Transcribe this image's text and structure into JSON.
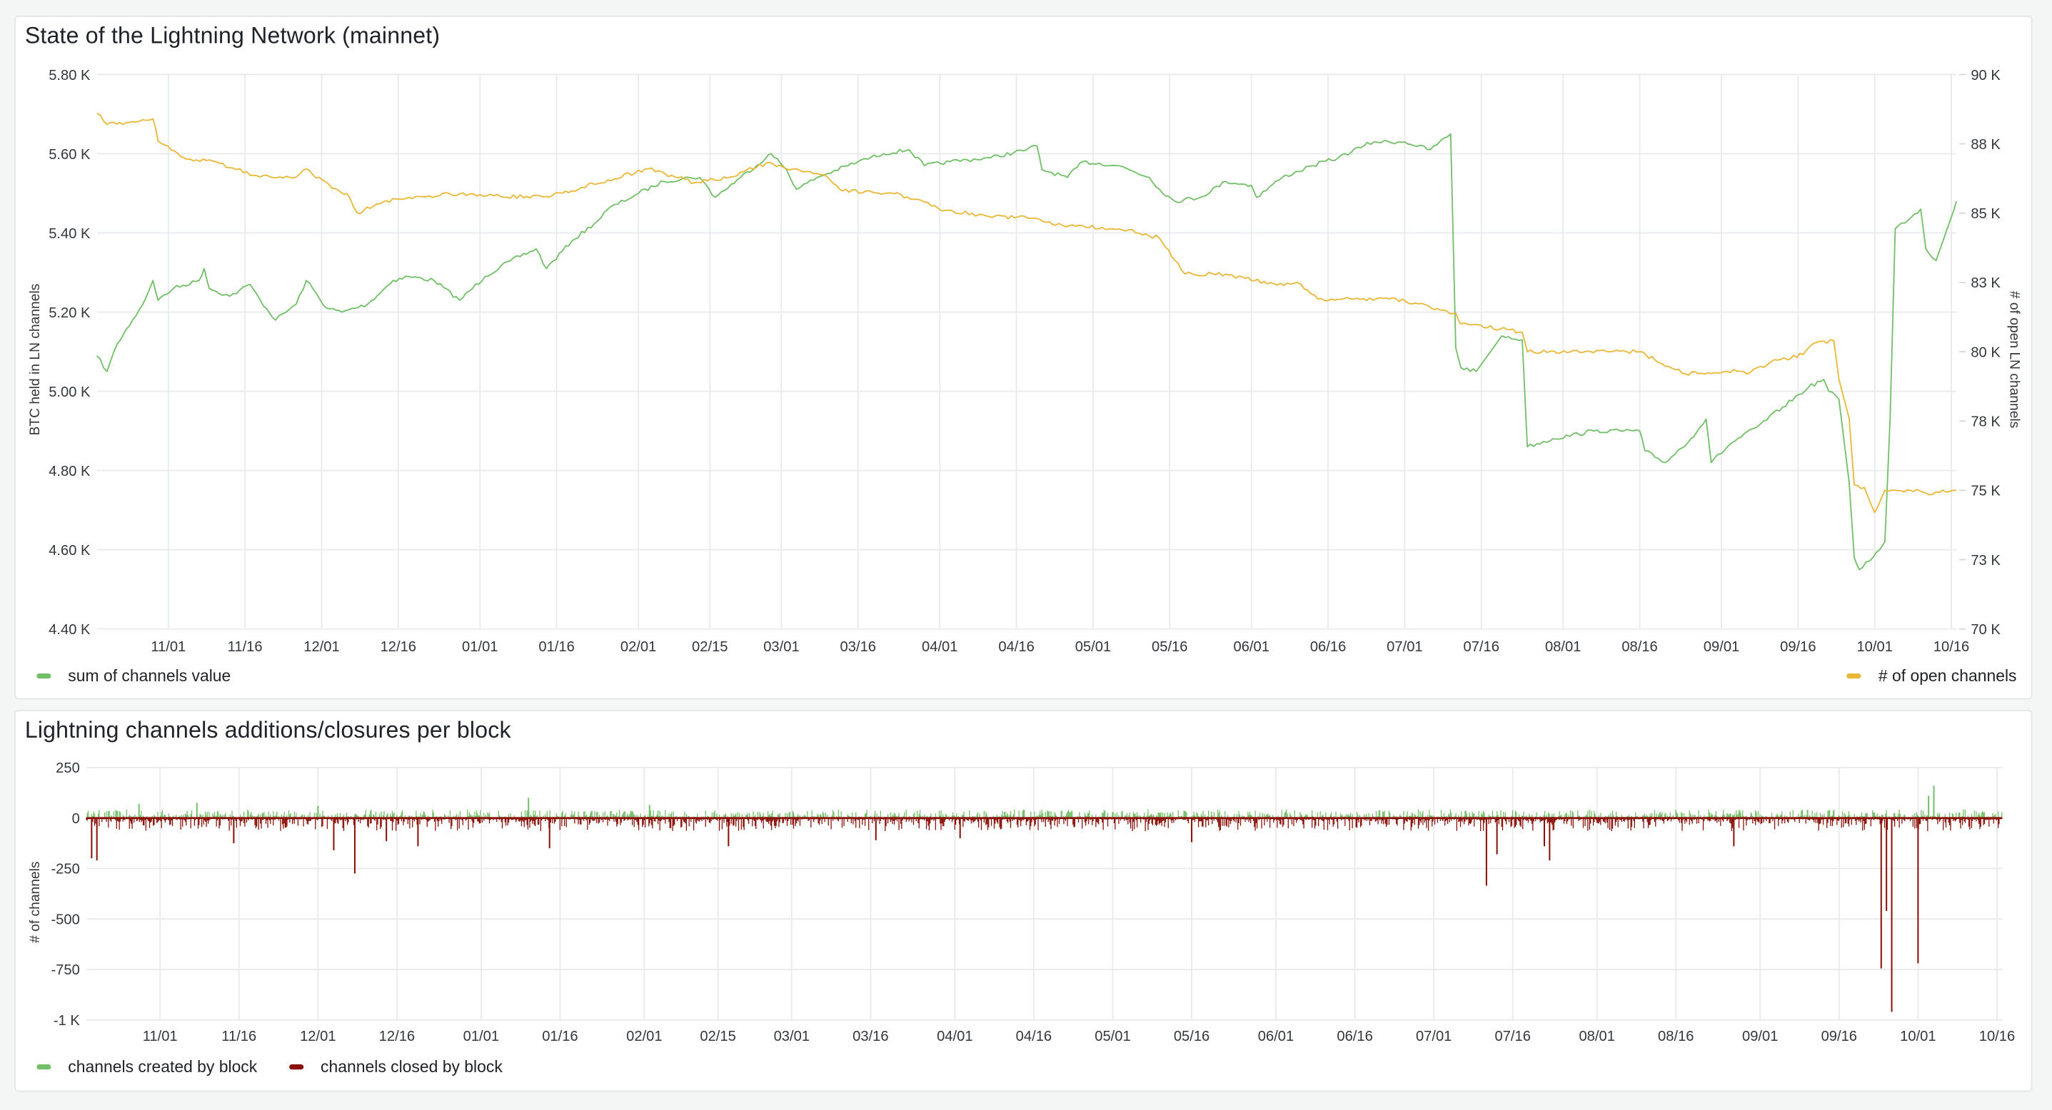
{
  "colors": {
    "btc": "#73bf69",
    "channels": "#eab839",
    "created": "#73bf69",
    "closed": "#8a0f06",
    "grid": "#e9eaec",
    "bg": "#f4f5f5"
  },
  "panel1": {
    "title": "State of the Lightning Network (mainnet)",
    "legend": [
      {
        "label": "sum of channels value",
        "color": "#73bf69"
      },
      {
        "label": "# of open channels",
        "color": "#eab839"
      }
    ]
  },
  "panel2": {
    "title": "Lightning channels additions/closures per block",
    "legend": [
      {
        "label": "channels created by block",
        "color": "#73bf69"
      },
      {
        "label": "channels closed by block",
        "color": "#8a0f06"
      }
    ]
  },
  "chart_data": [
    {
      "type": "line",
      "title": "State of the Lightning Network (mainnet)",
      "xlim": [
        "10/18",
        "10/17"
      ],
      "x_ticks": [
        "11/01",
        "11/16",
        "12/01",
        "12/16",
        "01/01",
        "01/16",
        "02/01",
        "02/15",
        "03/01",
        "03/16",
        "04/01",
        "04/16",
        "05/01",
        "05/16",
        "06/01",
        "06/16",
        "07/01",
        "07/16",
        "08/01",
        "08/16",
        "09/01",
        "09/16",
        "10/01",
        "10/16"
      ],
      "grid": true,
      "legend_placement": "bottom",
      "y_left": {
        "label": "BTC held in LN channels",
        "lim": [
          4400,
          5800
        ],
        "ticks": [
          5800,
          5600,
          5400,
          5200,
          5000,
          4800,
          4600,
          4400
        ],
        "tick_labels": [
          "5.80 K",
          "5.60 K",
          "5.40 K",
          "5.20 K",
          "5.00 K",
          "4.80 K",
          "4.60 K",
          "4.40 K"
        ]
      },
      "y_right": {
        "label": "# of open LN channels",
        "lim": [
          70000,
          90000
        ],
        "ticks": [
          90000,
          87500,
          85000,
          82500,
          80000,
          77500,
          75000,
          72500,
          70000
        ],
        "tick_labels": [
          "90 K",
          "88 K",
          "85 K",
          "83 K",
          "80 K",
          "78 K",
          "75 K",
          "73 K",
          "70 K"
        ]
      },
      "series": [
        {
          "name": "sum of channels value",
          "axis": "left",
          "color": "#73bf69",
          "points": [
            [
              "10/18",
              5090
            ],
            [
              "10/20",
              5050
            ],
            [
              "10/22",
              5120
            ],
            [
              "10/25",
              5180
            ],
            [
              "10/27",
              5220
            ],
            [
              "10/29",
              5280
            ],
            [
              "10/30",
              5230
            ],
            [
              "11/02",
              5260
            ],
            [
              "11/07",
              5280
            ],
            [
              "11/08",
              5310
            ],
            [
              "11/09",
              5260
            ],
            [
              "11/13",
              5240
            ],
            [
              "11/17",
              5270
            ],
            [
              "11/19",
              5230
            ],
            [
              "11/22",
              5180
            ],
            [
              "11/26",
              5220
            ],
            [
              "11/28",
              5280
            ],
            [
              "12/02",
              5210
            ],
            [
              "12/05",
              5200
            ],
            [
              "12/10",
              5220
            ],
            [
              "12/15",
              5280
            ],
            [
              "12/18",
              5290
            ],
            [
              "12/23",
              5280
            ],
            [
              "12/28",
              5230
            ],
            [
              "01/02",
              5290
            ],
            [
              "01/07",
              5330
            ],
            [
              "01/12",
              5360
            ],
            [
              "01/14",
              5310
            ],
            [
              "01/19",
              5380
            ],
            [
              "01/24",
              5430
            ],
            [
              "01/26",
              5460
            ],
            [
              "02/01",
              5500
            ],
            [
              "02/06",
              5530
            ],
            [
              "02/11",
              5540
            ],
            [
              "02/13",
              5540
            ],
            [
              "02/16",
              5490
            ],
            [
              "02/21",
              5540
            ],
            [
              "02/26",
              5590
            ],
            [
              "02/27",
              5600
            ],
            [
              "03/02",
              5560
            ],
            [
              "03/04",
              5510
            ],
            [
              "03/08",
              5540
            ],
            [
              "03/16",
              5580
            ],
            [
              "03/21",
              5600
            ],
            [
              "03/26",
              5610
            ],
            [
              "03/29",
              5570
            ],
            [
              "04/03",
              5580
            ],
            [
              "04/11",
              5590
            ],
            [
              "04/18",
              5610
            ],
            [
              "04/20",
              5620
            ],
            [
              "04/21",
              5560
            ],
            [
              "04/26",
              5540
            ],
            [
              "04/29",
              5580
            ],
            [
              "05/06",
              5570
            ],
            [
              "05/12",
              5540
            ],
            [
              "05/14",
              5510
            ],
            [
              "05/17",
              5480
            ],
            [
              "05/22",
              5490
            ],
            [
              "05/27",
              5530
            ],
            [
              "06/01",
              5520
            ],
            [
              "06/02",
              5490
            ],
            [
              "06/07",
              5540
            ],
            [
              "06/13",
              5570
            ],
            [
              "06/18",
              5590
            ],
            [
              "06/23",
              5620
            ],
            [
              "06/25",
              5630
            ],
            [
              "07/01",
              5630
            ],
            [
              "07/06",
              5610
            ],
            [
              "07/10",
              5650
            ],
            [
              "07/11",
              5110
            ],
            [
              "07/12",
              5060
            ],
            [
              "07/15",
              5050
            ],
            [
              "07/20",
              5140
            ],
            [
              "07/24",
              5130
            ],
            [
              "07/25",
              4860
            ],
            [
              "07/30",
              4880
            ],
            [
              "08/07",
              4900
            ],
            [
              "08/16",
              4900
            ],
            [
              "08/17",
              4850
            ],
            [
              "08/21",
              4820
            ],
            [
              "08/26",
              4880
            ],
            [
              "08/29",
              4930
            ],
            [
              "08/30",
              4820
            ],
            [
              "09/03",
              4870
            ],
            [
              "09/08",
              4910
            ],
            [
              "09/13",
              4960
            ],
            [
              "09/18",
              5010
            ],
            [
              "09/21",
              5030
            ],
            [
              "09/22",
              5000
            ],
            [
              "09/24",
              4980
            ],
            [
              "09/26",
              4770
            ],
            [
              "09/27",
              4580
            ],
            [
              "09/28",
              4550
            ],
            [
              "10/02",
              4600
            ],
            [
              "10/03",
              4620
            ],
            [
              "10/04",
              4930
            ],
            [
              "10/05",
              5410
            ],
            [
              "10/10",
              5460
            ],
            [
              "10/11",
              5360
            ],
            [
              "10/13",
              5330
            ],
            [
              "10/16",
              5440
            ],
            [
              "10/17",
              5480
            ]
          ]
        },
        {
          "name": "# of open channels",
          "axis": "right",
          "color": "#eab839",
          "points": [
            [
              "10/18",
              88600
            ],
            [
              "10/20",
              88200
            ],
            [
              "10/25",
              88300
            ],
            [
              "10/29",
              88400
            ],
            [
              "10/30",
              87600
            ],
            [
              "11/04",
              87000
            ],
            [
              "11/11",
              86800
            ],
            [
              "11/19",
              86300
            ],
            [
              "11/26",
              86300
            ],
            [
              "11/28",
              86600
            ],
            [
              "12/03",
              85900
            ],
            [
              "12/06",
              85700
            ],
            [
              "12/08",
              85000
            ],
            [
              "12/13",
              85400
            ],
            [
              "12/20",
              85600
            ],
            [
              "12/28",
              85700
            ],
            [
              "01/05",
              85600
            ],
            [
              "01/14",
              85600
            ],
            [
              "01/19",
              85800
            ],
            [
              "01/26",
              86200
            ],
            [
              "02/03",
              86600
            ],
            [
              "02/12",
              86100
            ],
            [
              "02/19",
              86300
            ],
            [
              "02/26",
              86800
            ],
            [
              "03/02",
              86600
            ],
            [
              "03/10",
              86300
            ],
            [
              "03/13",
              85800
            ],
            [
              "03/23",
              85700
            ],
            [
              "03/29",
              85400
            ],
            [
              "04/02",
              85100
            ],
            [
              "04/10",
              84900
            ],
            [
              "04/20",
              84800
            ],
            [
              "04/23",
              84600
            ],
            [
              "05/08",
              84400
            ],
            [
              "05/14",
              84100
            ],
            [
              "05/17",
              83300
            ],
            [
              "05/19",
              82800
            ],
            [
              "05/27",
              82800
            ],
            [
              "06/06",
              82400
            ],
            [
              "06/10",
              82500
            ],
            [
              "06/14",
              81900
            ],
            [
              "06/28",
              81900
            ],
            [
              "07/05",
              81700
            ],
            [
              "07/08",
              81500
            ],
            [
              "07/11",
              81400
            ],
            [
              "07/12",
              81000
            ],
            [
              "07/21",
              80800
            ],
            [
              "07/24",
              80700
            ],
            [
              "07/25",
              80000
            ],
            [
              "08/16",
              80000
            ],
            [
              "08/19",
              79700
            ],
            [
              "08/25",
              79200
            ],
            [
              "09/04",
              79300
            ],
            [
              "09/06",
              79200
            ],
            [
              "09/12",
              79700
            ],
            [
              "09/17",
              79900
            ],
            [
              "09/19",
              80300
            ],
            [
              "09/23",
              80400
            ],
            [
              "09/24",
              79000
            ],
            [
              "09/26",
              77600
            ],
            [
              "09/27",
              75200
            ],
            [
              "09/29",
              75100
            ],
            [
              "10/01",
              74200
            ],
            [
              "10/03",
              75000
            ],
            [
              "10/08",
              75000
            ],
            [
              "10/11",
              74900
            ],
            [
              "10/17",
              75000
            ]
          ]
        }
      ]
    },
    {
      "type": "bar",
      "title": "Lightning channels additions/closures per block",
      "xlim": [
        "10/18",
        "10/17"
      ],
      "x_ticks": [
        "11/01",
        "11/16",
        "12/01",
        "12/16",
        "01/01",
        "01/16",
        "02/01",
        "02/15",
        "03/01",
        "03/16",
        "04/01",
        "04/16",
        "05/01",
        "05/16",
        "06/01",
        "06/16",
        "07/01",
        "07/16",
        "08/01",
        "08/16",
        "09/01",
        "09/16",
        "10/01",
        "10/16"
      ],
      "grid": true,
      "legend_placement": "bottom-left",
      "y": {
        "label": "# of channels",
        "lim": [
          -1000,
          250
        ],
        "ticks": [
          250,
          0,
          -250,
          -500,
          -750,
          -1000
        ],
        "tick_labels": [
          "250",
          "0",
          "-250",
          "-500",
          "-750",
          "-1 K"
        ]
      },
      "typical_range": {
        "created_max": 40,
        "closed_min": -60
      },
      "series": [
        {
          "name": "channels created by block",
          "color": "#73bf69",
          "spikes": [
            [
              "10/28",
              70
            ],
            [
              "11/08",
              75
            ],
            [
              "12/01",
              60
            ],
            [
              "01/10",
              100
            ],
            [
              "02/02",
              65
            ],
            [
              "09/09",
              40
            ],
            [
              "09/10",
              40
            ],
            [
              "09/15",
              40
            ],
            [
              "10/03",
              110
            ],
            [
              "10/04",
              160
            ]
          ]
        },
        {
          "name": "channels closed by block",
          "color": "#8a0f06",
          "spikes": [
            [
              "10/19",
              -200
            ],
            [
              "10/20",
              -210
            ],
            [
              "11/15",
              -125
            ],
            [
              "12/04",
              -160
            ],
            [
              "12/08",
              -275
            ],
            [
              "12/14",
              -115
            ],
            [
              "12/20",
              -140
            ],
            [
              "01/14",
              -150
            ],
            [
              "02/17",
              -140
            ],
            [
              "03/17",
              -110
            ],
            [
              "04/02",
              -100
            ],
            [
              "05/16",
              -120
            ],
            [
              "07/11",
              -335
            ],
            [
              "07/13",
              -180
            ],
            [
              "07/22",
              -140
            ],
            [
              "07/23",
              -210
            ],
            [
              "08/27",
              -140
            ],
            [
              "09/24",
              -745
            ],
            [
              "09/25",
              -460
            ],
            [
              "09/26",
              -960
            ],
            [
              "10/01",
              -720
            ]
          ]
        }
      ]
    }
  ]
}
